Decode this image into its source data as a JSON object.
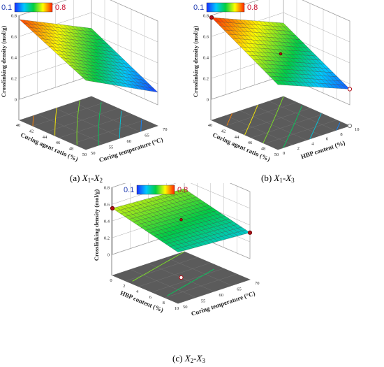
{
  "colorbar": {
    "min_label": "0.1",
    "max_label": "0.8",
    "min_color": "#1f3ab0",
    "max_color": "#c8102e",
    "gradient": [
      "#1a2cff",
      "#00c8ff",
      "#00d040",
      "#ffff00",
      "#ff2000"
    ]
  },
  "chart_data": [
    {
      "type": "surface3d",
      "panel": "a",
      "caption": {
        "prefix": "(a) ",
        "v1": "X",
        "s1": "1",
        "sep": "-",
        "v2": "X",
        "s2": "2"
      },
      "zlabel": "Crosslinking density (mol/g)",
      "xlabel": "Curing agent ratio (%)",
      "ylabel": "Curing temperature (°C)",
      "x_ticks": [
        "40",
        "42",
        "44",
        "46",
        "48",
        "50"
      ],
      "y_ticks": [
        "50",
        "55",
        "60",
        "65",
        "70"
      ],
      "z_ticks": [
        "0",
        "0.2",
        "0.4",
        "0.6",
        "0.8"
      ],
      "xlim": [
        40,
        50
      ],
      "ylim": [
        50,
        70
      ],
      "zlim": [
        0,
        0.8
      ],
      "corner_values": {
        "x_low_y_low": 0.76,
        "x_high_y_low": 0.46,
        "x_low_y_high": 0.45,
        "x_high_y_high": 0.12
      }
    },
    {
      "type": "surface3d",
      "panel": "b",
      "caption": {
        "prefix": "(b) ",
        "v1": "X",
        "s1": "1",
        "sep": "-",
        "v2": "X",
        "s2": "3"
      },
      "zlabel": "Crosslinking density (mol/g)",
      "xlabel": "Curing agent ratio (%)",
      "ylabel": "HBP content (%)",
      "x_ticks": [
        "40",
        "42",
        "44",
        "46",
        "48",
        "50"
      ],
      "y_ticks": [
        "0",
        "2",
        "4",
        "6",
        "8",
        "10"
      ],
      "z_ticks": [
        "0",
        "0.2",
        "0.4",
        "0.6",
        "0.8"
      ],
      "xlim": [
        40,
        50
      ],
      "ylim": [
        0,
        10
      ],
      "zlim": [
        0,
        0.8
      ],
      "corner_values": {
        "x_low_y_low": 0.78,
        "x_high_y_low": 0.42,
        "x_low_y_high": 0.5,
        "x_high_y_high": 0.15
      },
      "markers": [
        {
          "x": 40,
          "y": 0,
          "z": 0.78,
          "style": "red"
        },
        {
          "x": 45,
          "y": 5,
          "z": 0.46,
          "style": "red"
        },
        {
          "x": 50,
          "y": 10,
          "z": 0.15,
          "style": "open"
        },
        {
          "x": 50,
          "y": 10,
          "z": 0.0,
          "style": "white"
        }
      ]
    },
    {
      "type": "surface3d",
      "panel": "c",
      "caption": {
        "prefix": "(c) ",
        "v1": "X",
        "s1": "2",
        "sep": "-",
        "v2": "X",
        "s2": "3"
      },
      "zlabel": "Crosslinking density (mol/g)",
      "xlabel": "HBP content (%)",
      "ylabel": "Curing temperature (°C)",
      "x_ticks": [
        "0",
        "2",
        "4",
        "6",
        "8",
        "10"
      ],
      "y_ticks": [
        "50",
        "55",
        "60",
        "65",
        "70"
      ],
      "z_ticks": [
        "0",
        "0.2",
        "0.4",
        "0.6",
        "0.8"
      ],
      "xlim": [
        0,
        10
      ],
      "ylim": [
        50,
        70
      ],
      "zlim": [
        0,
        0.8
      ],
      "corner_values": {
        "x_low_y_low": 0.55,
        "x_high_y_low": 0.36,
        "x_low_y_high": 0.5,
        "x_high_y_high": 0.31
      },
      "markers": [
        {
          "x": 0,
          "y": 50,
          "z": 0.55,
          "style": "red"
        },
        {
          "x": 5,
          "y": 60,
          "z": 0.44,
          "style": "red"
        },
        {
          "x": 10,
          "y": 70,
          "z": 0.31,
          "style": "red"
        },
        {
          "x": 5,
          "y": 60,
          "z": 0.0,
          "style": "open"
        }
      ]
    }
  ]
}
